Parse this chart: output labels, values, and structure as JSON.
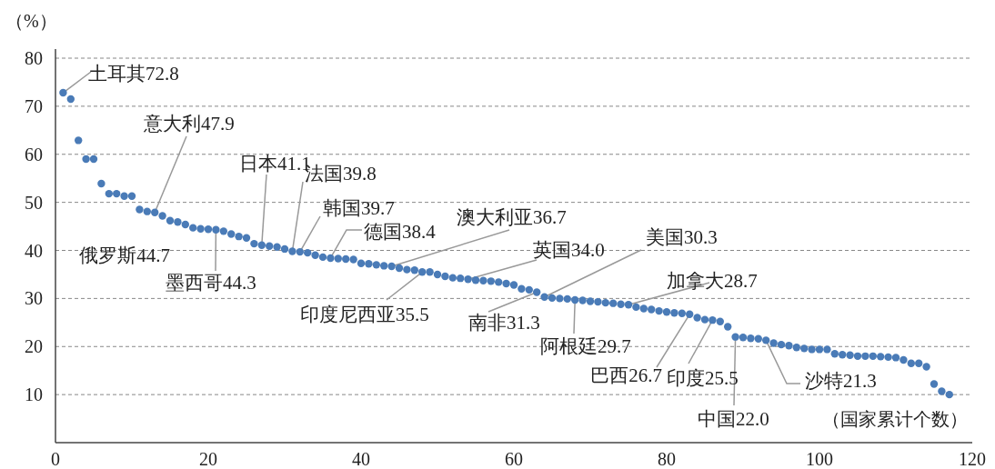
{
  "chart_data": {
    "type": "scatter",
    "ylabel": "（%）",
    "xlabel": "（国家累计个数）",
    "xlim": [
      0,
      120
    ],
    "xticks": [
      0,
      20,
      40,
      60,
      80,
      100,
      120
    ],
    "ylim": [
      0,
      80
    ],
    "yticks": [
      {
        "value": 0,
        "label": null
      },
      10,
      20,
      30,
      40,
      50,
      60,
      70,
      80
    ],
    "grid": "y",
    "marker": "circle",
    "series": [
      {
        "color": "#4a7bb7",
        "x": [
          1,
          2,
          3,
          4,
          5,
          6,
          7,
          8,
          9,
          10,
          11,
          12,
          13,
          14,
          15,
          16,
          17,
          18,
          19,
          20,
          21,
          22,
          23,
          24,
          25,
          26,
          27,
          28,
          29,
          30,
          31,
          32,
          33,
          34,
          35,
          36,
          37,
          38,
          39,
          40,
          41,
          42,
          43,
          44,
          45,
          46,
          47,
          48,
          49,
          50,
          51,
          52,
          53,
          54,
          55,
          56,
          57,
          58,
          59,
          60,
          61,
          62,
          63,
          64,
          65,
          66,
          67,
          68,
          69,
          70,
          71,
          72,
          73,
          74,
          75,
          76,
          77,
          78,
          79,
          80,
          81,
          82,
          83,
          84,
          85,
          86,
          87,
          88,
          89,
          90,
          91,
          92,
          93,
          94,
          95,
          96,
          97,
          98,
          99,
          100,
          101,
          102,
          103,
          104,
          105,
          106,
          107,
          108,
          109,
          110,
          111,
          112,
          113,
          114,
          115,
          116,
          117
        ],
        "values": [
          72.8,
          71.5,
          62.9,
          59.0,
          59.0,
          53.9,
          51.8,
          51.8,
          51.3,
          51.3,
          48.5,
          48.1,
          47.9,
          47.2,
          46.2,
          45.9,
          45.4,
          44.7,
          44.5,
          44.4,
          44.3,
          44.0,
          43.4,
          42.9,
          42.6,
          41.4,
          41.1,
          40.9,
          40.7,
          40.3,
          39.8,
          39.7,
          39.5,
          39.0,
          38.6,
          38.4,
          38.3,
          38.2,
          38.1,
          37.3,
          37.2,
          37.0,
          36.8,
          36.7,
          36.3,
          36.0,
          35.9,
          35.5,
          35.5,
          35.0,
          34.6,
          34.3,
          34.2,
          34.0,
          33.8,
          33.7,
          33.6,
          33.4,
          33.1,
          32.8,
          32.0,
          31.8,
          31.3,
          30.3,
          30.1,
          30.0,
          29.9,
          29.7,
          29.6,
          29.4,
          29.3,
          29.1,
          29.0,
          28.8,
          28.7,
          28.2,
          27.9,
          27.7,
          27.4,
          27.2,
          27.0,
          26.9,
          26.7,
          26.0,
          25.6,
          25.5,
          25.2,
          24.1,
          22.0,
          21.9,
          21.7,
          21.6,
          21.3,
          20.7,
          20.4,
          20.2,
          19.8,
          19.6,
          19.4,
          19.4,
          19.4,
          18.5,
          18.3,
          18.2,
          18.0,
          18.0,
          18.0,
          17.9,
          17.8,
          17.7,
          17.2,
          16.5,
          16.5,
          15.8,
          12.2,
          10.7,
          10.0
        ]
      }
    ],
    "annotations": [
      {
        "text": "土耳其72.8",
        "x": 1,
        "y": 72.8
      },
      {
        "text": "意大利47.9",
        "x": 13,
        "y": 47.9
      },
      {
        "text": "俄罗斯44.7",
        "x": 18,
        "y": 44.7
      },
      {
        "text": "墨西哥44.3",
        "x": 21,
        "y": 44.3
      },
      {
        "text": "日本41.1",
        "x": 27,
        "y": 41.1
      },
      {
        "text": "法国39.8",
        "x": 31,
        "y": 39.8
      },
      {
        "text": "韩国39.7",
        "x": 32,
        "y": 39.7
      },
      {
        "text": "德国38.4",
        "x": 36,
        "y": 38.4
      },
      {
        "text": "澳大利亚36.7",
        "x": 44,
        "y": 36.7
      },
      {
        "text": "印度尼西亚35.5",
        "x": 48,
        "y": 35.5
      },
      {
        "text": "英国34.0",
        "x": 54,
        "y": 34.0
      },
      {
        "text": "美国30.3",
        "x": 64,
        "y": 30.3
      },
      {
        "text": "南非31.3",
        "x": 63,
        "y": 31.3
      },
      {
        "text": "阿根廷29.7",
        "x": 68,
        "y": 29.7
      },
      {
        "text": "加拿大28.7",
        "x": 75,
        "y": 28.7
      },
      {
        "text": "巴西26.7",
        "x": 83,
        "y": 26.7
      },
      {
        "text": "印度25.5",
        "x": 86,
        "y": 25.5
      },
      {
        "text": "中国22.0",
        "x": 89,
        "y": 22.0
      },
      {
        "text": "沙特21.3",
        "x": 93,
        "y": 21.3
      }
    ]
  }
}
